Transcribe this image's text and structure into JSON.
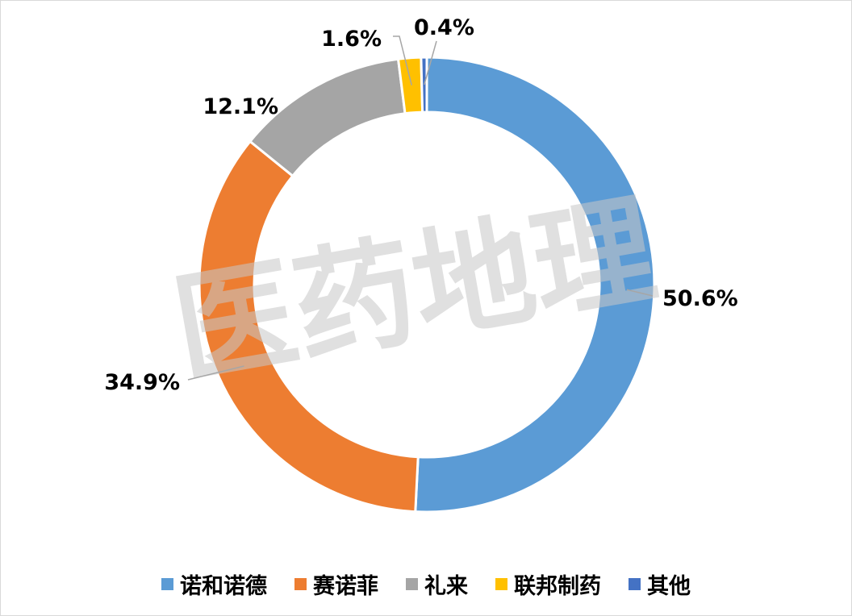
{
  "chart_data": {
    "type": "pie",
    "variant": "donut",
    "title": "",
    "categories": [
      "诺和诺德",
      "赛诺菲",
      "礼来",
      "联邦制药",
      "其他"
    ],
    "values": [
      50.6,
      34.9,
      12.1,
      1.6,
      0.4
    ],
    "value_labels": [
      "50.6%",
      "34.9%",
      "12.1%",
      "1.6%",
      "0.4%"
    ],
    "colors": [
      "#5B9BD5",
      "#ED7D31",
      "#A5A5A5",
      "#FFC000",
      "#4472C4"
    ],
    "start_angle_deg": 0,
    "direction": "clockwise",
    "legend_position": "bottom",
    "watermark": "医药地理"
  }
}
